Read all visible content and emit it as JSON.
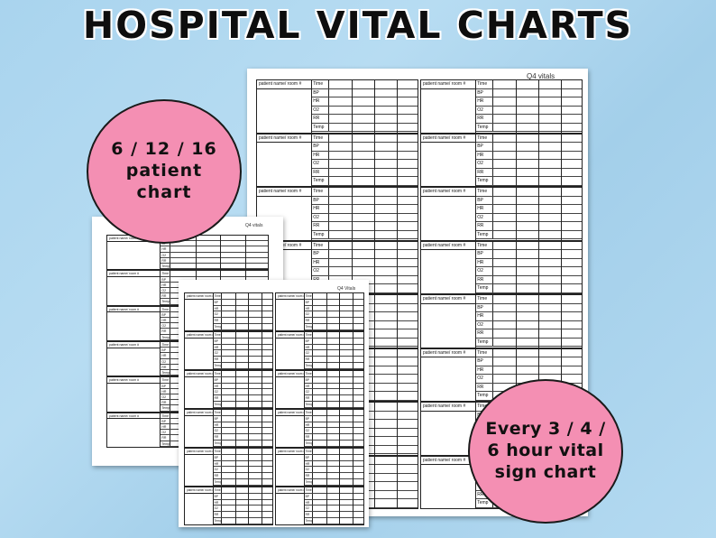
{
  "header": {
    "title": "HOSPITAL VITAL CHARTS"
  },
  "badges": {
    "left": {
      "lines": [
        "6 / 12 / 16",
        "patient",
        "chart"
      ]
    },
    "right": {
      "lines": [
        "Every 3 / 4 /",
        "6 hour vital",
        "sign chart"
      ]
    }
  },
  "sheets": {
    "large": {
      "label": "Q4 vitals",
      "patient_label": "patient name/ room #",
      "row_labels": [
        "Time",
        "BP",
        "HR",
        "O2",
        "RR",
        "Temp"
      ]
    },
    "small_back": {
      "label": "Q4 vitals",
      "patient_label": "patient name/ room #",
      "row_labels": [
        "Time",
        "BP",
        "HR",
        "O2",
        "RR",
        "Temp"
      ]
    },
    "small_front": {
      "label": "Q4 Vitals",
      "patient_label": "patient name/ room #",
      "row_labels": [
        "Time",
        "BP",
        "HR",
        "O2",
        "RR",
        "Temp"
      ]
    }
  },
  "colors": {
    "badge": "#f48fb3",
    "background": "#a9d4ee"
  }
}
